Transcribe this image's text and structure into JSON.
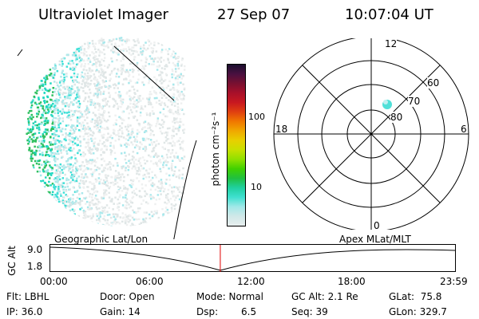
{
  "header": {
    "instrument": "Ultraviolet Imager",
    "date": "27 Sep 07",
    "time": "10:07:04 UT"
  },
  "colorbar": {
    "label": "photon cm⁻²s⁻¹",
    "ticks": [
      "100",
      "10"
    ],
    "colors": [
      "#1a0f2e",
      "#4a1040",
      "#7a1030",
      "#a8102a",
      "#c81820",
      "#e04010",
      "#f07800",
      "#f0a800",
      "#e8d000",
      "#c8e000",
      "#90e000",
      "#40d000",
      "#20c040",
      "#20d0a0",
      "#40e0d0",
      "#a0e8e8",
      "#d0e8e8",
      "#e8eeee"
    ]
  },
  "polar_grid": {
    "mlt_labels": [
      "12",
      "18",
      "6",
      "0"
    ],
    "lat_labels": [
      "60",
      "70",
      "80"
    ]
  },
  "timeline": {
    "y_axis_label": "GC Alt",
    "y_ticks": [
      "9.0",
      "1.8"
    ],
    "left_label": "Geographic Lat/Lon",
    "right_label": "Apex MLat/MLT",
    "time_ticks": [
      "00:00",
      "06:00",
      "12:00",
      "18:00",
      "23:59"
    ],
    "cursor_fraction": 0.42
  },
  "status": {
    "flt": "Flt: LBHL",
    "ip": "IP: 36.0",
    "door": "Door: Open",
    "gain": "Gain: 14",
    "mode": "Mode: Normal",
    "dsp_label": "Dsp:",
    "dsp_value": "6.5",
    "gc_alt": "GC Alt: 2.1 Re",
    "seq": "Seq: 39",
    "glat": "GLat:  75.8",
    "glon": "GLon: 329.7"
  }
}
